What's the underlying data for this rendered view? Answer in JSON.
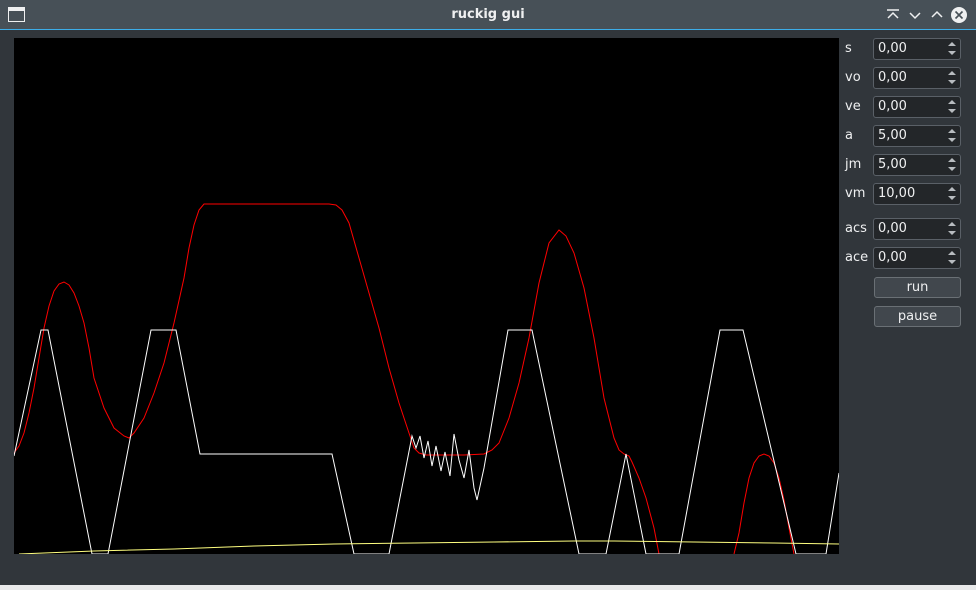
{
  "window": {
    "title": "ruckig gui",
    "icons": [
      "window-menu-icon",
      "keep-above-icon",
      "minimize-icon",
      "maximize-icon",
      "close-icon"
    ]
  },
  "params": [
    {
      "label": "s",
      "value": "0,00"
    },
    {
      "label": "vo",
      "value": "0,00"
    },
    {
      "label": "ve",
      "value": "0,00"
    },
    {
      "label": "a",
      "value": "5,00"
    },
    {
      "label": "jm",
      "value": "5,00"
    },
    {
      "label": "vm",
      "value": "10,00"
    },
    {
      "label": "acs",
      "value": "0,00"
    },
    {
      "label": "ace",
      "value": "0,00"
    }
  ],
  "buttons": {
    "run": "run",
    "pause": "pause"
  },
  "plot": {
    "background": "#000000",
    "curve_colors": {
      "velocity": "#ff0000",
      "acceleration": "#ffffff",
      "position": "#ffff80"
    }
  },
  "colors": {
    "accent": "#3daee9",
    "window_bg": "#31363b",
    "titlebar": "#475057"
  }
}
